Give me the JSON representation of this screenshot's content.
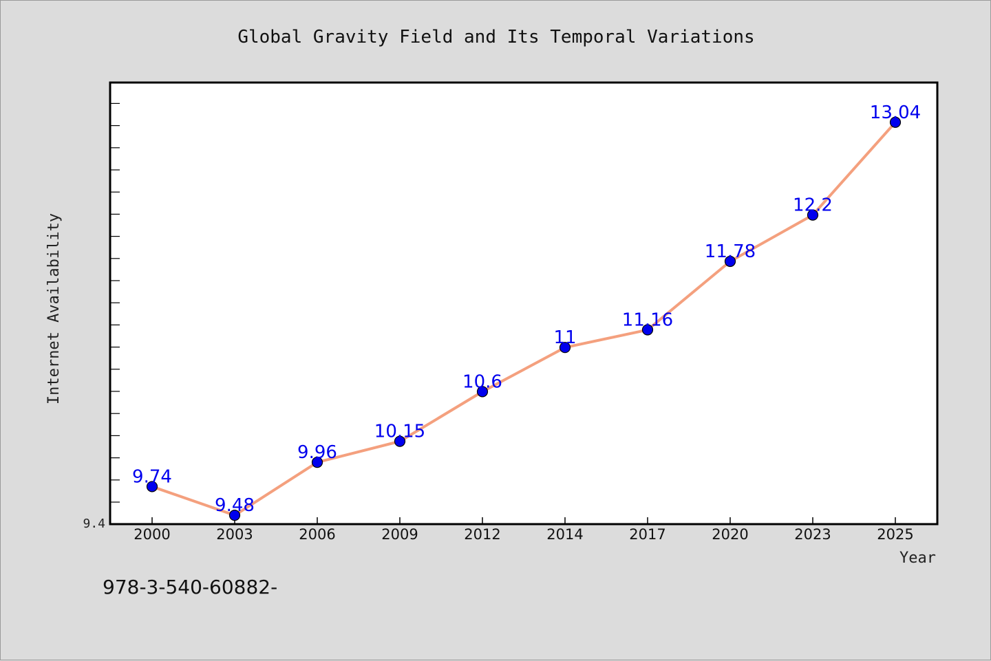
{
  "chart_data": {
    "type": "line",
    "title": "Global Gravity Field and Its Temporal Variations",
    "xlabel": "Year",
    "ylabel": "Internet Availability",
    "categories": [
      "2000",
      "2003",
      "2006",
      "2009",
      "2012",
      "2014",
      "2017",
      "2020",
      "2023",
      "2025"
    ],
    "series": [
      {
        "values": [
          9.74,
          9.48,
          9.96,
          10.15,
          10.6,
          11,
          11.16,
          11.78,
          12.2,
          13.04
        ]
      }
    ],
    "data_labels": [
      "9.74",
      "9.48",
      "9.96",
      "10.15",
      "10.6",
      "11",
      "11.16",
      "11.78",
      "12.2",
      "13.04"
    ],
    "ylim": [
      9.4,
      13.4
    ],
    "y_min_label": "9.4",
    "grid": false,
    "legend": "none",
    "colors": {
      "line": "#f4a07e",
      "marker": "#0000ee",
      "data_label": "#0000ee",
      "plot_background": "#ffffff",
      "page_background": "#dcdcdc"
    }
  },
  "footer_note": "978-3-540-60882-"
}
